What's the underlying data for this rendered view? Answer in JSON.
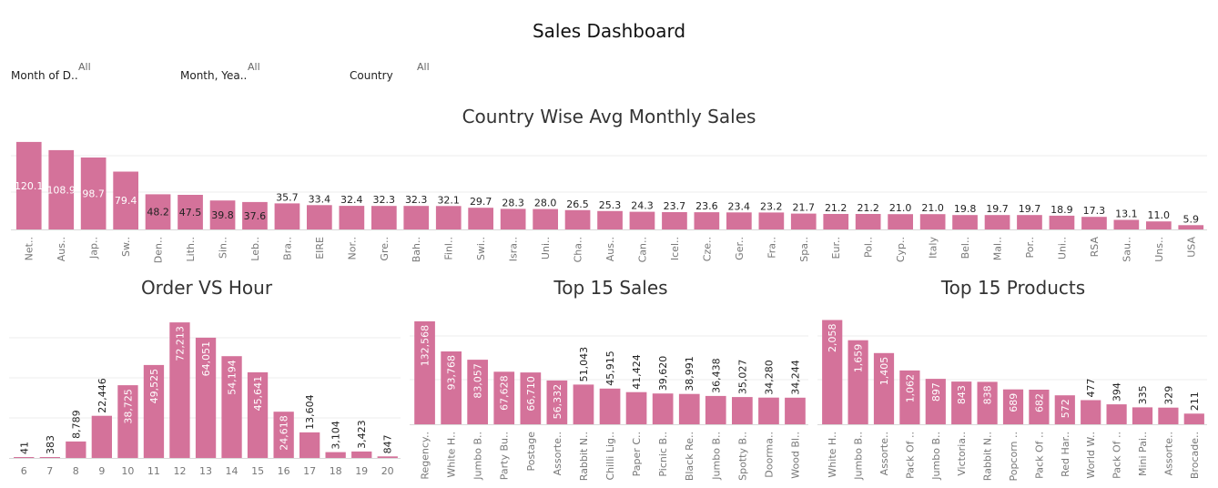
{
  "dashboard": {
    "title": "Sales Dashboard"
  },
  "filters": [
    {
      "label": "Month of D..",
      "value": "All"
    },
    {
      "label": "Month, Yea..",
      "value": "All"
    },
    {
      "label": "Country",
      "value": "All"
    }
  ],
  "colors": {
    "bar": "#d4729a",
    "label_light": "#ffffff",
    "label_dark": "#222222"
  },
  "chart_data": [
    {
      "id": "country",
      "type": "bar",
      "title": "Country Wise Avg Monthly Sales",
      "label_rotate": false,
      "ylim": [
        0,
        130
      ],
      "categories": [
        "Net..",
        "Aus..",
        "Jap..",
        "Sw..",
        "Den..",
        "Lith..",
        "Sin..",
        "Leb..",
        "Bra..",
        "EIRE",
        "Nor..",
        "Gre..",
        "Bah..",
        "Finl..",
        "Swi..",
        "Isra..",
        "Uni..",
        "Cha..",
        "Aus..",
        "Can..",
        "Icel..",
        "Cze..",
        "Ger..",
        "Fra..",
        "Spa..",
        "Eur..",
        "Pol..",
        "Cyp..",
        "Italy",
        "Bel..",
        "Mal..",
        "Por..",
        "Uni..",
        "RSA",
        "Sau..",
        "Uns..",
        "USA"
      ],
      "values": [
        120.1,
        108.9,
        98.7,
        79.4,
        48.2,
        47.5,
        39.8,
        37.6,
        35.7,
        33.4,
        32.4,
        32.3,
        32.3,
        32.1,
        29.7,
        28.3,
        28.0,
        26.5,
        25.3,
        24.3,
        23.7,
        23.6,
        23.4,
        23.2,
        21.7,
        21.2,
        21.2,
        21.0,
        21.0,
        19.8,
        19.7,
        19.7,
        18.9,
        17.3,
        13.1,
        11.0,
        5.9
      ],
      "labels": [
        "120.1",
        "108.9",
        "98.7",
        "79.4",
        "48.2",
        "47.5",
        "39.8",
        "37.6",
        "35.7",
        "33.4",
        "32.4",
        "32.3",
        "32.3",
        "32.1",
        "29.7",
        "28.3",
        "28.0",
        "26.5",
        "25.3",
        "24.3",
        "23.7",
        "23.6",
        "23.4",
        "23.2",
        "21.7",
        "21.2",
        "21.2",
        "21.0",
        "21.0",
        "19.8",
        "19.7",
        "19.7",
        "18.9",
        "17.3",
        "13.1",
        "11.0",
        "5.9"
      ]
    },
    {
      "id": "hour",
      "type": "bar",
      "title": "Order VS Hour",
      "label_rotate": true,
      "ylim": [
        0,
        80000
      ],
      "categories": [
        "6",
        "7",
        "8",
        "9",
        "10",
        "11",
        "12",
        "13",
        "14",
        "15",
        "16",
        "17",
        "18",
        "19",
        "20"
      ],
      "values": [
        41,
        383,
        8789,
        22446,
        38725,
        49525,
        72213,
        64051,
        54194,
        45641,
        24618,
        13604,
        3104,
        3423,
        847
      ],
      "labels": [
        "41",
        "383",
        "8,789",
        "22,446",
        "38,725",
        "49,525",
        "72,213",
        "64,051",
        "54,194",
        "45,641",
        "24,618",
        "13,604",
        "3,104",
        "3,423",
        "847"
      ]
    },
    {
      "id": "sales",
      "type": "bar",
      "title": "Top 15 Sales",
      "label_rotate": true,
      "ylim": [
        0,
        150000
      ],
      "categories": [
        "Regency..",
        "White H..",
        "Jumbo B..",
        "Party Bu..",
        "Postage",
        "Assorte..",
        "Rabbit N..",
        "Chilli Lig..",
        "Paper C..",
        "Picnic B..",
        "Black Re..",
        "Jumbo B..",
        "Spotty B..",
        "Doorma..",
        "Wood Bl.."
      ],
      "values": [
        132568,
        93768,
        83057,
        67628,
        66710,
        56332,
        51043,
        45915,
        41424,
        39620,
        38991,
        36438,
        35027,
        34280,
        34244
      ],
      "labels": [
        "132,568",
        "93,768",
        "83,057",
        "67,628",
        "66,710",
        "56,332",
        "51,043",
        "45,915",
        "41,424",
        "39,620",
        "38,991",
        "36,438",
        "35,027",
        "34,280",
        "34,244"
      ]
    },
    {
      "id": "products",
      "type": "bar",
      "title": "Top 15 Products",
      "label_rotate": true,
      "ylim": [
        0,
        2300
      ],
      "categories": [
        "White H..",
        "Jumbo B..",
        "Assorte..",
        "Pack Of ..",
        "Jumbo B..",
        "Victoria..",
        "Rabbit N..",
        "Popcorn ..",
        "Pack Of ..",
        "Red Har..",
        "World W..",
        "Pack Of ..",
        "Mini Pai..",
        "Assorte..",
        "Brocade.."
      ],
      "values": [
        2058,
        1659,
        1405,
        1062,
        897,
        843,
        838,
        689,
        682,
        572,
        477,
        394,
        335,
        329,
        211
      ],
      "labels": [
        "2,058",
        "1,659",
        "1,405",
        "1,062",
        "897",
        "843",
        "838",
        "689",
        "682",
        "572",
        "477",
        "394",
        "335",
        "329",
        "211"
      ]
    }
  ]
}
